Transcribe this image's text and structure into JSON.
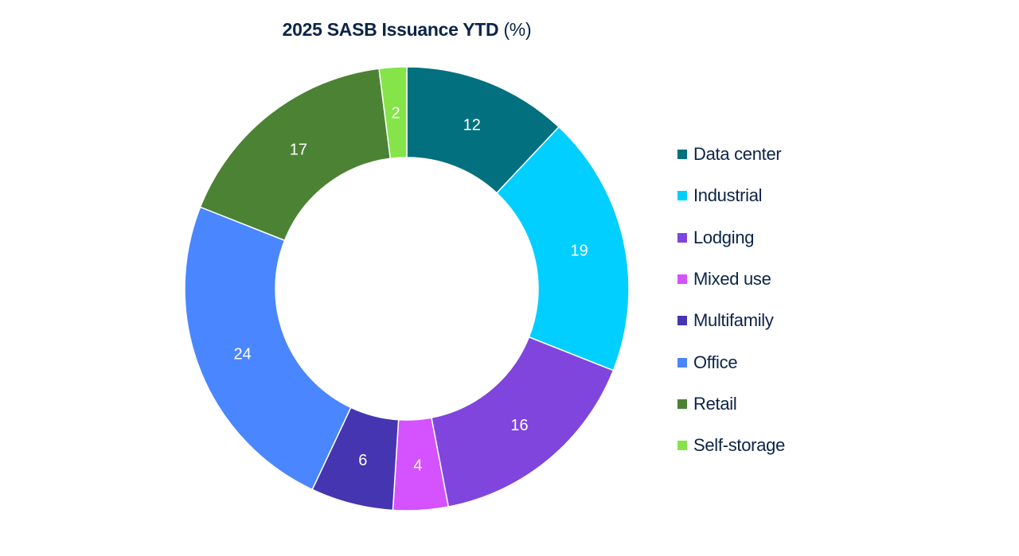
{
  "chart_data": {
    "type": "pie",
    "variant": "donut",
    "title": "2025 SASB Issuance YTD",
    "title_unit": "(%)",
    "categories": [
      "Data center",
      "Industrial",
      "Lodging",
      "Mixed use",
      "Multifamily",
      "Office",
      "Retail",
      "Self-storage"
    ],
    "values": [
      12,
      19,
      16,
      4,
      6,
      24,
      17,
      2
    ],
    "colors": [
      "#03707f",
      "#00cfff",
      "#7f45dc",
      "#d452ff",
      "#4535b0",
      "#4a86ff",
      "#4c8234",
      "#84e44a"
    ],
    "data_labels": [
      "12",
      "19",
      "16",
      "4",
      "6",
      "24",
      "17",
      "2"
    ],
    "legend_position": "right"
  }
}
